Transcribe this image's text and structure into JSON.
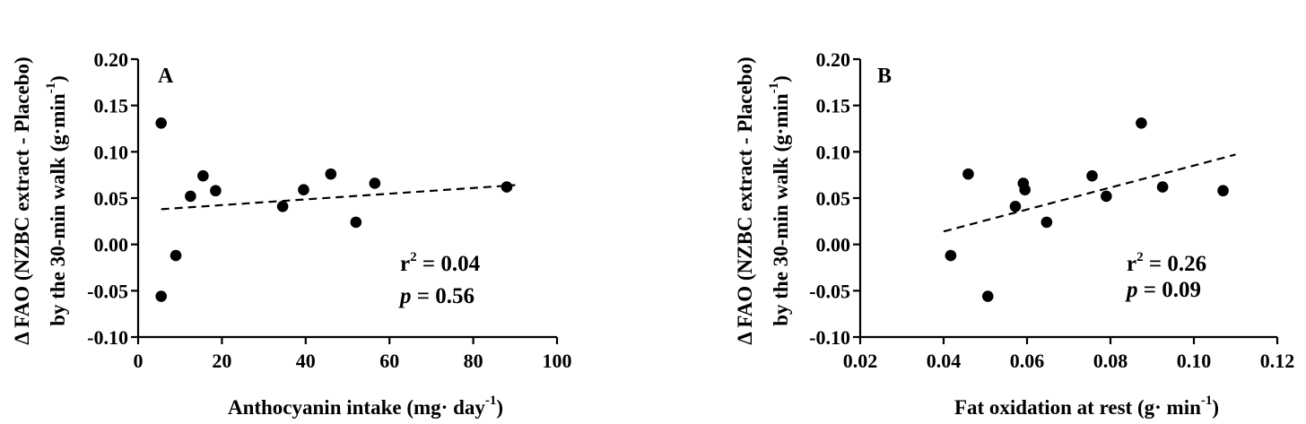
{
  "chart_data": [
    {
      "type": "scatter",
      "panel": "A",
      "xlabel": "Anthocyanin intake (mg· day",
      "xlabel_sup": "-1",
      "xlabel_end": ")",
      "ylabel_line1": "Δ FAO (NZBC extract - Placebo)",
      "ylabel_line2": "by the 30-min walk (g·min",
      "ylabel_sup": "-1",
      "ylabel_end": ")",
      "xlim": [
        0,
        100
      ],
      "ylim": [
        -0.1,
        0.2
      ],
      "xticks": [
        "0",
        "20",
        "40",
        "60",
        "80",
        "100"
      ],
      "yticks": [
        "-0.10",
        "-0.05",
        "0.00",
        "0.05",
        "0.10",
        "0.15",
        "0.20"
      ],
      "points": [
        {
          "x": 5.5,
          "y": 0.131
        },
        {
          "x": 5.5,
          "y": -0.056
        },
        {
          "x": 9,
          "y": -0.012
        },
        {
          "x": 12.5,
          "y": 0.052
        },
        {
          "x": 15.5,
          "y": 0.074
        },
        {
          "x": 18.5,
          "y": 0.058
        },
        {
          "x": 34.5,
          "y": 0.041
        },
        {
          "x": 39.5,
          "y": 0.059
        },
        {
          "x": 46,
          "y": 0.076
        },
        {
          "x": 52,
          "y": 0.024
        },
        {
          "x": 56.5,
          "y": 0.066
        },
        {
          "x": 88,
          "y": 0.062
        }
      ],
      "trendline": {
        "x": [
          5.5,
          90
        ],
        "y": [
          0.038,
          0.064
        ]
      },
      "r2_label": "r",
      "r2_sup": "2",
      "r2_value": " = 0.04",
      "p_label": "p",
      "p_value": " = 0.56"
    },
    {
      "type": "scatter",
      "panel": "B",
      "xlabel": "Fat oxidation at rest (g· min",
      "xlabel_sup": "-1",
      "xlabel_end": ")",
      "ylabel_line1": "Δ FAO (NZBC extract - Placebo)",
      "ylabel_line2": "by the 30-min walk (g·min",
      "ylabel_sup": "-1",
      "ylabel_end": ")",
      "xlim": [
        0.02,
        0.12
      ],
      "ylim": [
        -0.1,
        0.2
      ],
      "xticks": [
        "0.02",
        "0.04",
        "0.06",
        "0.08",
        "0.10",
        "0.12"
      ],
      "yticks": [
        "-0.10",
        "-0.05",
        "0.00",
        "0.05",
        "0.10",
        "0.15",
        "0.20"
      ],
      "points": [
        {
          "x": 0.0417,
          "y": -0.012
        },
        {
          "x": 0.0459,
          "y": 0.076
        },
        {
          "x": 0.0506,
          "y": -0.056
        },
        {
          "x": 0.0572,
          "y": 0.041
        },
        {
          "x": 0.0591,
          "y": 0.066
        },
        {
          "x": 0.0595,
          "y": 0.059
        },
        {
          "x": 0.0647,
          "y": 0.024
        },
        {
          "x": 0.0756,
          "y": 0.074
        },
        {
          "x": 0.079,
          "y": 0.052
        },
        {
          "x": 0.0874,
          "y": 0.131
        },
        {
          "x": 0.0925,
          "y": 0.062
        },
        {
          "x": 0.107,
          "y": 0.058
        }
      ],
      "trendline": {
        "x": [
          0.04,
          0.11
        ],
        "y": [
          0.014,
          0.097
        ]
      },
      "r2_label": "r",
      "r2_sup": "2",
      "r2_value": " = 0.26",
      "p_label": "p",
      "p_value": " = 0.09"
    }
  ]
}
